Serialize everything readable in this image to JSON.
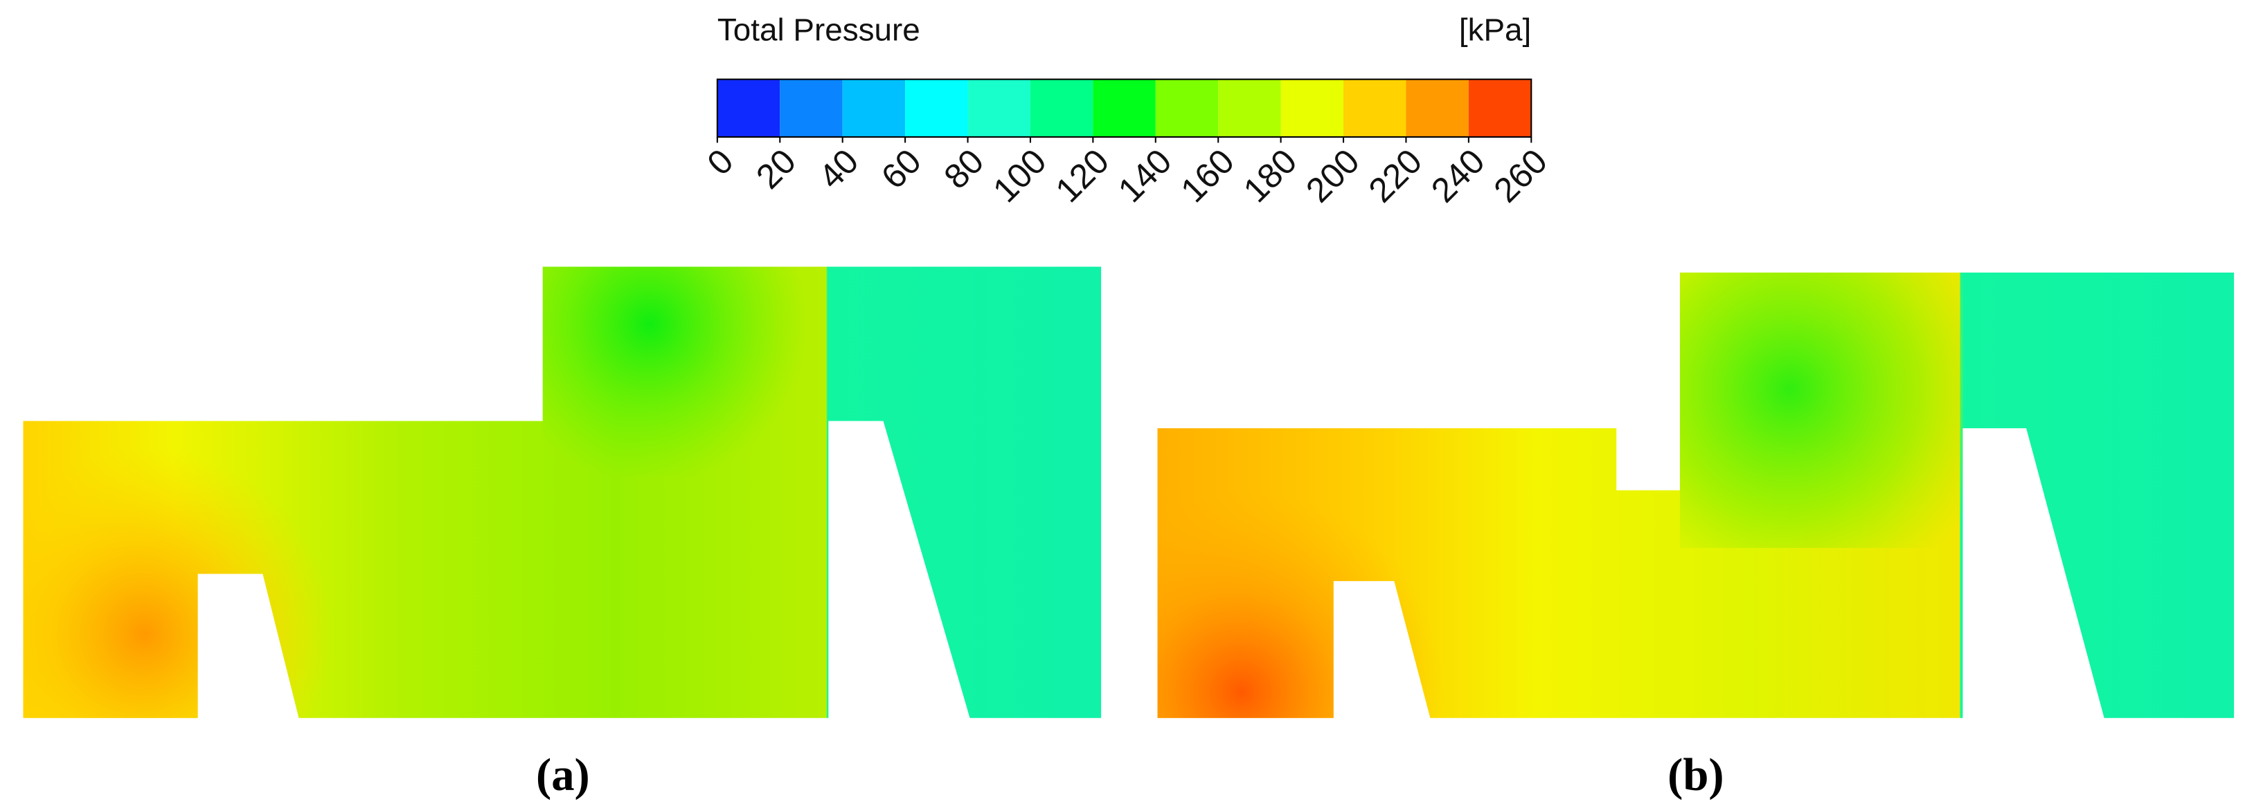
{
  "colorbar": {
    "title": "Total Pressure",
    "unit": "[kPa]",
    "ticks": [
      0,
      20,
      40,
      60,
      80,
      100,
      120,
      140,
      160,
      180,
      200,
      220,
      240,
      260
    ],
    "colors": [
      "#0f2aff",
      "#0a84ff",
      "#00c0ff",
      "#00ffff",
      "#18ffcc",
      "#00ff88",
      "#00ff1a",
      "#7dff00",
      "#b0ff00",
      "#e8ff00",
      "#ffd200",
      "#ff9a00",
      "#ff4600"
    ]
  },
  "panels": [
    {
      "label": "(a)"
    },
    {
      "label": "(b)"
    }
  ]
}
